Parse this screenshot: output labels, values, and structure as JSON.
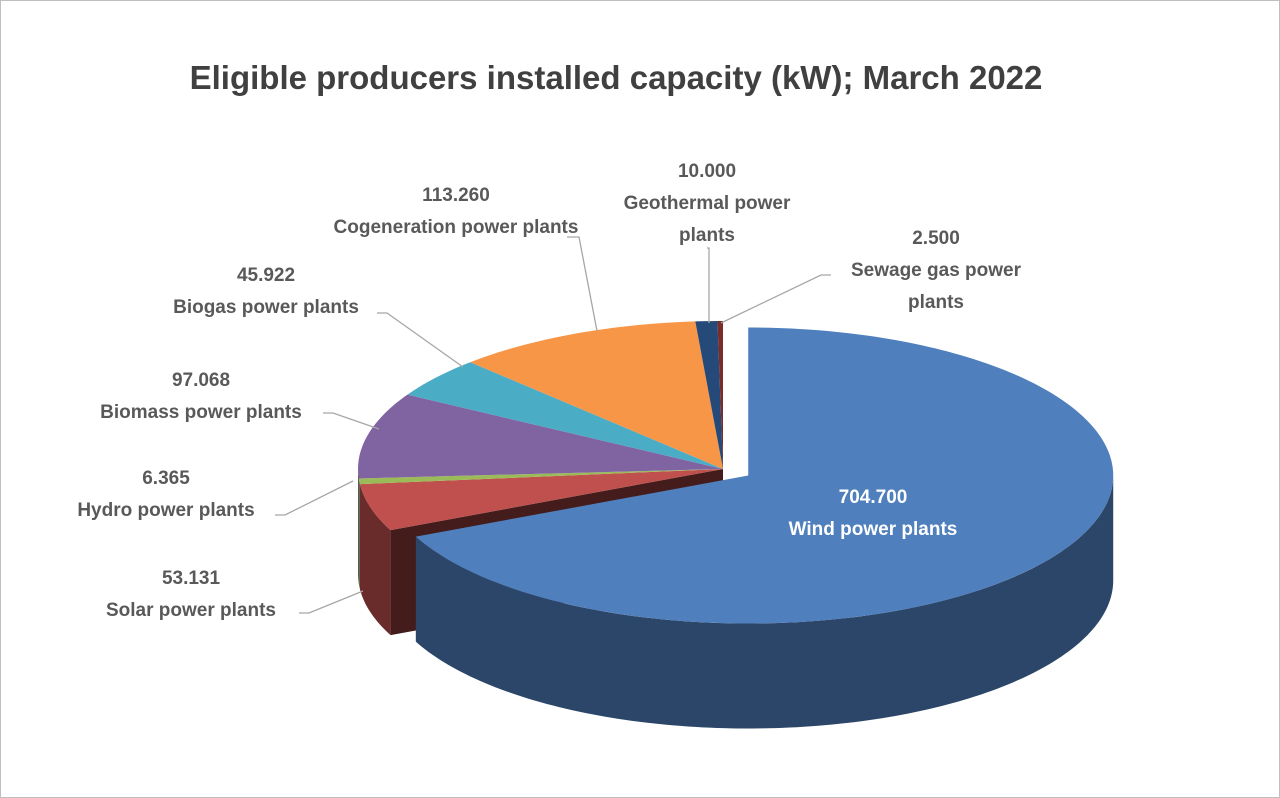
{
  "chart_data": {
    "type": "pie",
    "title": "Eligible producers installed capacity (kW); March 2022",
    "categories": [
      "Wind power plants",
      "Solar power plants",
      "Hydro power plants",
      "Biomass power plants",
      "Biogas power plants",
      "Cogeneration power plants",
      "Geothermal power plants",
      "Sewage gas power plants"
    ],
    "values": [
      704700,
      53131,
      6365,
      97068,
      45922,
      113260,
      10000,
      2500
    ],
    "value_labels": [
      "704.700",
      "53.131",
      "6.365",
      "97.068",
      "45.922",
      "113.260",
      "10.000",
      "2.500"
    ],
    "colors": [
      "#4f7fbd",
      "#c0504d",
      "#9bbb59",
      "#8064a2",
      "#4bacc6",
      "#f79646",
      "#254a7a",
      "#7a2c2a"
    ]
  }
}
